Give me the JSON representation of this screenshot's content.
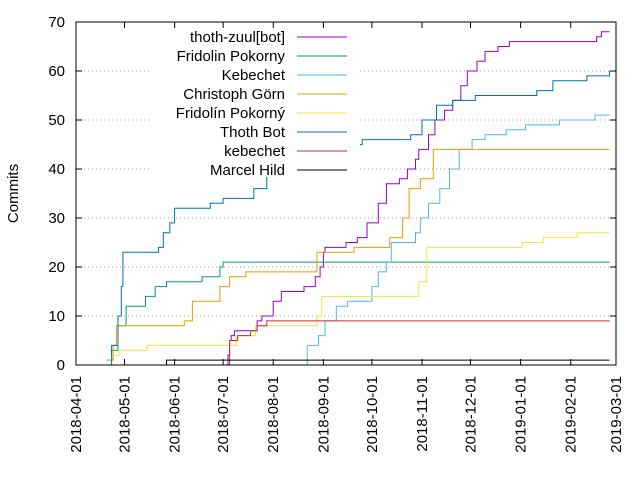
{
  "chart_data": {
    "type": "line",
    "title": "",
    "xlabel": "",
    "ylabel": "Commits",
    "xlim": [
      "2018-04-01",
      "2019-03-01"
    ],
    "ylim": [
      0,
      70
    ],
    "yticks": [
      0,
      10,
      20,
      30,
      40,
      50,
      60,
      70
    ],
    "xticks": [
      "2018-04-01",
      "2018-05-01",
      "2018-06-01",
      "2018-07-01",
      "2018-08-01",
      "2018-09-01",
      "2018-10-01",
      "2018-11-01",
      "2018-12-01",
      "2019-01-01",
      "2019-02-01",
      "2019-03-01"
    ],
    "grid": "horizontal dotted",
    "legend_position": "top-left",
    "series": [
      {
        "name": "thoth-zuul[bot]",
        "color": "#9400d3",
        "points": [
          [
            "2018-07-03",
            0
          ],
          [
            "2018-07-04",
            2
          ],
          [
            "2018-07-05",
            5
          ],
          [
            "2018-07-06",
            6
          ],
          [
            "2018-07-08",
            7
          ],
          [
            "2018-07-20",
            7
          ],
          [
            "2018-07-22",
            9
          ],
          [
            "2018-07-25",
            10
          ],
          [
            "2018-08-01",
            13
          ],
          [
            "2018-08-06",
            15
          ],
          [
            "2018-08-20",
            16
          ],
          [
            "2018-08-27",
            18
          ],
          [
            "2018-08-30",
            20
          ],
          [
            "2018-09-01",
            23
          ],
          [
            "2018-09-02",
            24
          ],
          [
            "2018-09-15",
            25
          ],
          [
            "2018-09-22",
            26
          ],
          [
            "2018-09-28",
            29
          ],
          [
            "2018-10-05",
            33
          ],
          [
            "2018-10-10",
            37
          ],
          [
            "2018-10-18",
            38
          ],
          [
            "2018-10-23",
            40
          ],
          [
            "2018-10-28",
            42
          ],
          [
            "2018-10-30",
            44
          ],
          [
            "2018-11-05",
            47
          ],
          [
            "2018-11-09",
            50
          ],
          [
            "2018-11-15",
            52
          ],
          [
            "2018-11-20",
            54
          ],
          [
            "2018-11-25",
            57
          ],
          [
            "2018-11-29",
            60
          ],
          [
            "2018-12-05",
            62
          ],
          [
            "2018-12-10",
            64
          ],
          [
            "2018-12-18",
            65
          ],
          [
            "2018-12-25",
            66
          ],
          [
            "2019-01-05",
            66
          ],
          [
            "2019-01-17",
            66
          ],
          [
            "2019-02-10",
            66
          ],
          [
            "2019-02-17",
            67
          ],
          [
            "2019-02-20",
            68
          ],
          [
            "2019-02-25",
            68
          ]
        ]
      },
      {
        "name": "Fridolin Pokorny",
        "color": "#009e73",
        "points": [
          [
            "2018-04-20",
            1
          ],
          [
            "2018-04-23",
            3
          ],
          [
            "2018-04-27",
            8
          ],
          [
            "2018-05-02",
            12
          ],
          [
            "2018-05-12",
            12
          ],
          [
            "2018-05-14",
            14
          ],
          [
            "2018-05-20",
            16
          ],
          [
            "2018-05-27",
            17
          ],
          [
            "2018-06-18",
            18
          ],
          [
            "2018-06-29",
            20
          ],
          [
            "2018-07-01",
            21
          ],
          [
            "2019-02-25",
            21
          ]
        ]
      },
      {
        "name": "Kebechet",
        "color": "#56b4e9",
        "points": [
          [
            "2018-08-20",
            0
          ],
          [
            "2018-08-22",
            4
          ],
          [
            "2018-08-29",
            6
          ],
          [
            "2018-09-02",
            9
          ],
          [
            "2018-09-09",
            12
          ],
          [
            "2018-09-16",
            13
          ],
          [
            "2018-09-27",
            13
          ],
          [
            "2018-10-01",
            16
          ],
          [
            "2018-10-05",
            19
          ],
          [
            "2018-10-10",
            21
          ],
          [
            "2018-10-13",
            25
          ],
          [
            "2018-10-22",
            25
          ],
          [
            "2018-10-28",
            27
          ],
          [
            "2018-10-31",
            30
          ],
          [
            "2018-11-05",
            33
          ],
          [
            "2018-11-12",
            36
          ],
          [
            "2018-11-18",
            40
          ],
          [
            "2018-11-24",
            44
          ],
          [
            "2018-12-02",
            46
          ],
          [
            "2018-12-10",
            47
          ],
          [
            "2018-12-17",
            47
          ],
          [
            "2018-12-23",
            48
          ],
          [
            "2019-01-04",
            49
          ],
          [
            "2019-01-18",
            49
          ],
          [
            "2019-01-25",
            50
          ],
          [
            "2019-02-11",
            50
          ],
          [
            "2019-02-16",
            51
          ],
          [
            "2019-02-25",
            51
          ]
        ]
      },
      {
        "name": "Christoph Görn",
        "color": "#e69f00",
        "points": [
          [
            "2018-04-20",
            1
          ],
          [
            "2018-04-24",
            4
          ],
          [
            "2018-04-26",
            8
          ],
          [
            "2018-06-07",
            9
          ],
          [
            "2018-06-12",
            13
          ],
          [
            "2018-06-29",
            16
          ],
          [
            "2018-07-05",
            18
          ],
          [
            "2018-07-15",
            19
          ],
          [
            "2018-08-24",
            19
          ],
          [
            "2018-08-28",
            23
          ],
          [
            "2018-09-02",
            23
          ],
          [
            "2018-09-20",
            24
          ],
          [
            "2018-10-08",
            24
          ],
          [
            "2018-10-12",
            26
          ],
          [
            "2018-10-20",
            30
          ],
          [
            "2018-10-24",
            36
          ],
          [
            "2018-10-31",
            38
          ],
          [
            "2018-11-08",
            44
          ],
          [
            "2019-02-25",
            44
          ]
        ]
      },
      {
        "name": "Fridolín Pokorný",
        "color": "#f0e442",
        "points": [
          [
            "2018-04-20",
            0
          ],
          [
            "2018-04-23",
            2
          ],
          [
            "2018-04-28",
            3
          ],
          [
            "2018-05-15",
            4
          ],
          [
            "2018-06-28",
            4
          ],
          [
            "2018-07-09",
            6
          ],
          [
            "2018-07-12",
            6
          ],
          [
            "2018-07-21",
            8
          ],
          [
            "2018-08-05",
            8
          ],
          [
            "2018-08-28",
            10
          ],
          [
            "2018-08-31",
            14
          ],
          [
            "2018-10-26",
            14
          ],
          [
            "2018-10-30",
            17
          ],
          [
            "2018-11-04",
            24
          ],
          [
            "2018-12-26",
            24
          ],
          [
            "2019-01-02",
            25
          ],
          [
            "2019-01-15",
            26
          ],
          [
            "2019-02-05",
            27
          ],
          [
            "2019-02-25",
            27
          ]
        ]
      },
      {
        "name": "Thoth Bot",
        "color": "#0072b2",
        "points": [
          [
            "2018-04-21",
            0
          ],
          [
            "2018-04-23",
            4
          ],
          [
            "2018-04-27",
            10
          ],
          [
            "2018-04-29",
            16
          ],
          [
            "2018-04-30",
            23
          ],
          [
            "2018-05-22",
            24
          ],
          [
            "2018-05-25",
            27
          ],
          [
            "2018-05-29",
            29
          ],
          [
            "2018-06-01",
            32
          ],
          [
            "2018-06-23",
            33
          ],
          [
            "2018-07-01",
            34
          ],
          [
            "2018-07-20",
            36
          ],
          [
            "2018-07-28",
            42
          ],
          [
            "2018-08-12",
            44
          ],
          [
            "2018-08-31",
            45
          ],
          [
            "2018-09-15",
            45
          ],
          [
            "2018-09-25",
            46
          ],
          [
            "2018-10-25",
            47
          ],
          [
            "2018-11-01",
            50
          ],
          [
            "2018-11-10",
            53
          ],
          [
            "2018-11-20",
            54
          ],
          [
            "2018-12-04",
            55
          ],
          [
            "2019-01-01",
            55
          ],
          [
            "2019-01-11",
            56
          ],
          [
            "2019-01-21",
            58
          ],
          [
            "2019-02-11",
            59
          ],
          [
            "2019-02-21",
            59
          ],
          [
            "2019-02-25",
            60
          ]
        ]
      },
      {
        "name": "kebechet",
        "color": "#c82d2d",
        "points": [
          [
            "2018-07-04",
            0
          ],
          [
            "2018-07-05",
            5
          ],
          [
            "2018-07-10",
            6
          ],
          [
            "2018-07-18",
            7
          ],
          [
            "2018-07-22",
            8
          ],
          [
            "2018-07-28",
            9
          ],
          [
            "2019-02-25",
            9
          ]
        ]
      },
      {
        "name": "Marcel Hild",
        "color": "#000000",
        "points": [
          [
            "2018-05-25",
            0
          ],
          [
            "2018-05-27",
            1
          ],
          [
            "2019-02-25",
            1
          ]
        ]
      }
    ]
  }
}
